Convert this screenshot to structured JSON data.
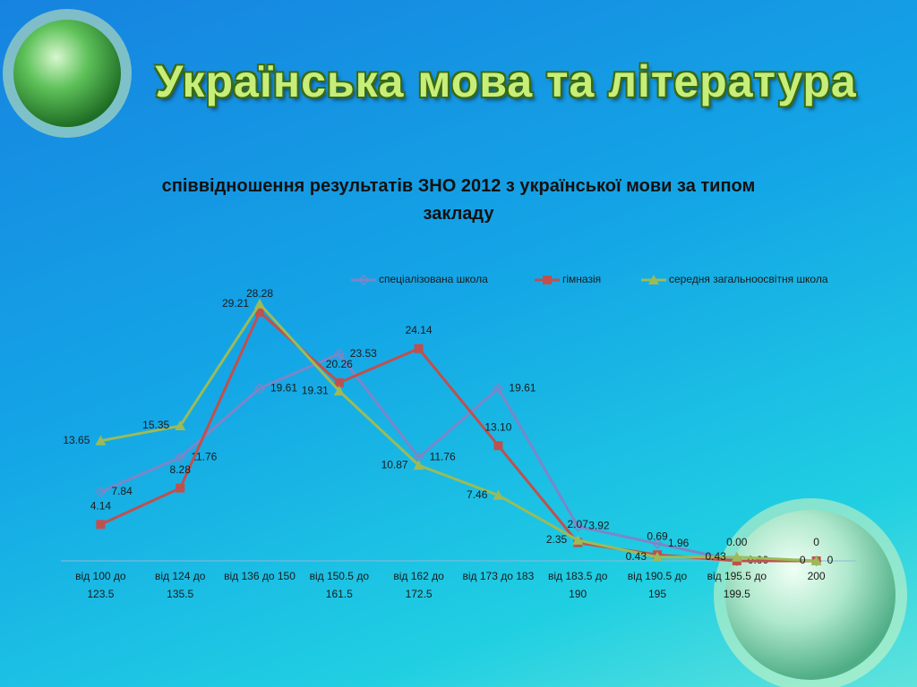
{
  "header": {
    "title": "Українська мова та література"
  },
  "chart_data": {
    "type": "line",
    "title": "співвідношення результатів ЗНО 2012 з української мови за типом закладу",
    "categories": [
      "від 100 до 123.5",
      "від 124 до 135.5",
      "від 136 до 150",
      "від 150.5 до 161.5",
      "від 162 до 172.5",
      "від 173 до 183",
      "від 183.5 до 190",
      "від 190.5 до 195",
      "від 195.5 до 199.5",
      "200"
    ],
    "ylim": [
      0,
      30
    ],
    "legend": "top-right",
    "series": [
      {
        "name": "спеціалізована школа",
        "color": "#7b86c8",
        "marker": "diamond",
        "values": [
          7.84,
          11.76,
          19.61,
          23.53,
          11.76,
          19.61,
          3.92,
          1.96,
          0,
          0
        ],
        "value_labels": [
          "7.84",
          "11.76",
          "19.61",
          "23.53",
          "11.76",
          "19.61",
          "3.92",
          "1.96",
          "0.00",
          "0"
        ]
      },
      {
        "name": "гімназія",
        "color": "#c0504d",
        "marker": "square",
        "values": [
          4.14,
          8.28,
          28.28,
          20.26,
          24.14,
          13.1,
          2.07,
          0.69,
          0,
          0
        ],
        "value_labels": [
          "4.14",
          "8.28",
          "28.28",
          "20.26",
          "24.14",
          "13.10",
          "2.07",
          "0.69",
          "0.00",
          "0"
        ]
      },
      {
        "name": "середня загальноосвітня школа",
        "color": "#9bbb59",
        "marker": "triangle",
        "values": [
          13.65,
          15.35,
          29.21,
          19.31,
          10.87,
          7.46,
          2.35,
          0.43,
          0.43,
          0
        ],
        "value_labels": [
          "13.65",
          "15.35",
          "29.21",
          "19.31",
          "10.87",
          "7.46",
          "2.35",
          "0.43",
          "0.43",
          "0"
        ]
      }
    ]
  }
}
